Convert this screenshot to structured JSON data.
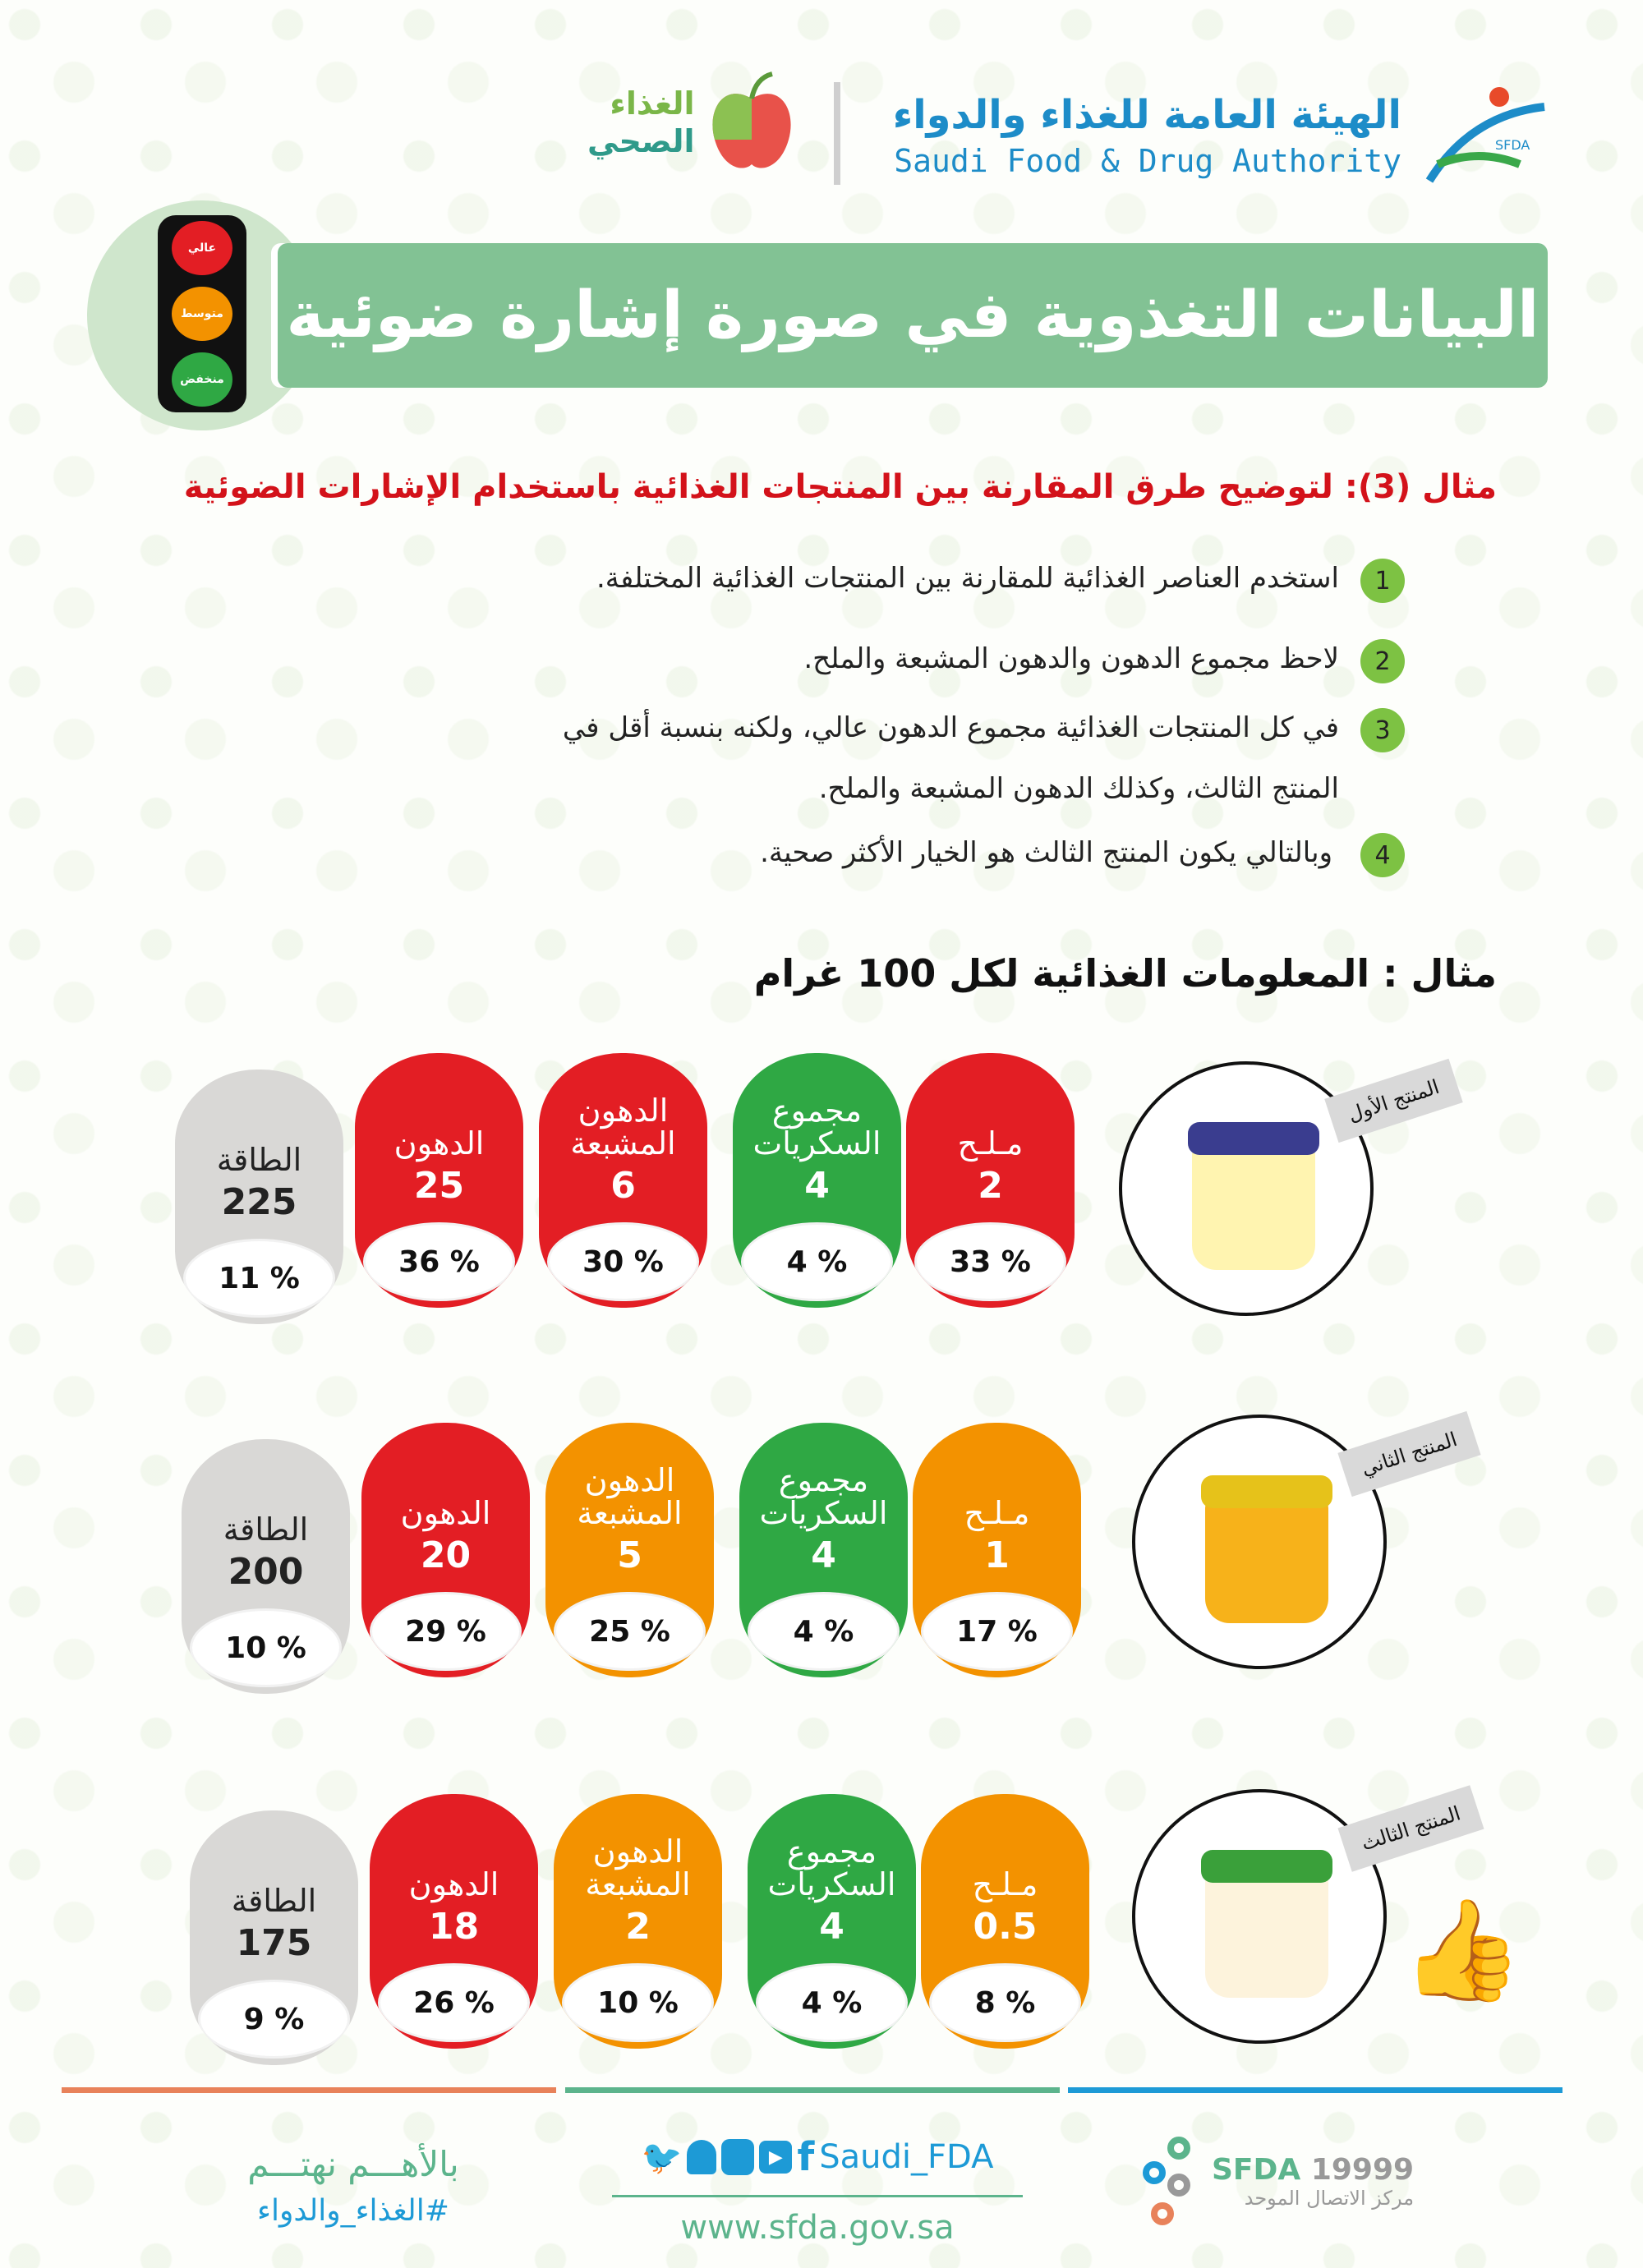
{
  "header": {
    "sfda_ar": "الهيئة العامة للغذاء والدواء",
    "sfda_en": "Saudi Food & Drug Authority",
    "sfda_badge": "SFDA",
    "healthy_1": "الغذاء",
    "healthy_2": "الصحي"
  },
  "traffic_light": {
    "high": "عالي",
    "medium": "متوسط",
    "low": "منخفض"
  },
  "title": "البيانات التغذوية في صورة إشارة ضوئية",
  "subtitle": "مثال (3): لتوضيح طرق المقارنة بين المنتجات الغذائية باستخدام الإشارات الضوئية",
  "steps": [
    {
      "n": "1",
      "text": "استخدم العناصر الغذائية للمقارنة بين المنتجات الغذائية المختلفة."
    },
    {
      "n": "2",
      "text": "لاحظ مجموع الدهون والدهون المشبعة والملح."
    },
    {
      "n": "3",
      "text": "في كل المنتجات الغذائية مجموع الدهون عالي، ولكنه بنسبة أقل في",
      "text2": "المنتج الثالث، وكذلك الدهون المشبعة والملح."
    },
    {
      "n": "4",
      "text": "وبالتالي يكون المنتج الثالث هو الخيار الأكثر صحية."
    }
  ],
  "example_heading": "مثال : المعلومات الغذائية لكل 100 غرام",
  "colors": {
    "red": "#e31e24",
    "orange": "#f39200",
    "green": "#2fa844",
    "gray": "#d9d8d6"
  },
  "products": [
    {
      "name": "المنتج الأول",
      "jar": "#fff4b0",
      "lid": "#3a3d8f",
      "items": [
        {
          "label": "الطاقة",
          "value": "225",
          "pct": "11 %",
          "color": "gray"
        },
        {
          "label": "الدهون",
          "value": "25",
          "pct": "36 %",
          "color": "red"
        },
        {
          "label": "الدهون المشبعة",
          "value": "6",
          "pct": "30 %",
          "color": "red"
        },
        {
          "label": "مجموع السكريات",
          "value": "4",
          "pct": "4 %",
          "color": "green"
        },
        {
          "label": "مـلـح",
          "value": "2",
          "pct": "33 %",
          "color": "red"
        }
      ]
    },
    {
      "name": "المنتج الثاني",
      "jar": "#f7b21a",
      "lid": "#e6c21a",
      "items": [
        {
          "label": "الطاقة",
          "value": "200",
          "pct": "10 %",
          "color": "gray"
        },
        {
          "label": "الدهون",
          "value": "20",
          "pct": "29 %",
          "color": "red"
        },
        {
          "label": "الدهون المشبعة",
          "value": "5",
          "pct": "25 %",
          "color": "orange"
        },
        {
          "label": "مجموع السكريات",
          "value": "4",
          "pct": "4 %",
          "color": "green"
        },
        {
          "label": "مـلـح",
          "value": "1",
          "pct": "17 %",
          "color": "orange"
        }
      ]
    },
    {
      "name": "المنتج الثالث",
      "jar": "#fdf3dc",
      "lid": "#3aa03a",
      "items": [
        {
          "label": "الطاقة",
          "value": "175",
          "pct": "9 %",
          "color": "gray"
        },
        {
          "label": "الدهون",
          "value": "18",
          "pct": "26 %",
          "color": "red"
        },
        {
          "label": "الدهون المشبعة",
          "value": "2",
          "pct": "10 %",
          "color": "orange"
        },
        {
          "label": "مجموع السكريات",
          "value": "4",
          "pct": "4 %",
          "color": "green"
        },
        {
          "label": "مـلـح",
          "value": "0.5",
          "pct": "8 %",
          "color": "orange"
        }
      ]
    }
  ],
  "footer": {
    "slogan": "بالأهـــم نهتـــم",
    "hashtag": "#الغذاء_والدواء",
    "handle": "Saudi_FDA",
    "website": "www.sfda.gov.sa",
    "hotline_brand": "SFDA",
    "hotline_num": "19999",
    "hotline_label": "مركز الاتصال الموحد"
  }
}
